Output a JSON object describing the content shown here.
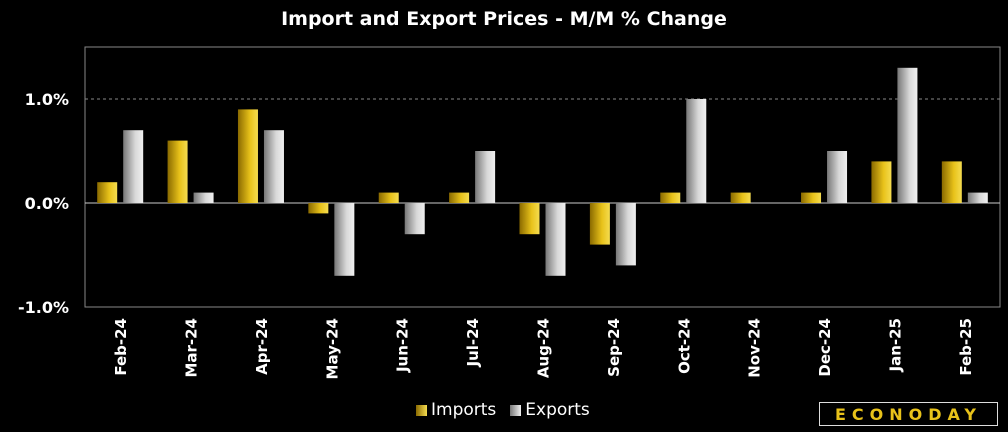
{
  "chart_data": {
    "type": "bar",
    "title": "Import and Export Prices - M/M % Change",
    "categories": [
      "Feb-24",
      "Mar-24",
      "Apr-24",
      "May-24",
      "Jun-24",
      "Jul-24",
      "Aug-24",
      "Sep-24",
      "Oct-24",
      "Nov-24",
      "Dec-24",
      "Jan-25",
      "Feb-25"
    ],
    "series": [
      {
        "name": "Imports",
        "values": [
          0.2,
          0.6,
          0.9,
          -0.1,
          0.1,
          0.1,
          -0.3,
          -0.4,
          0.1,
          0.1,
          0.1,
          0.4,
          0.4
        ],
        "color": "#e8c21a"
      },
      {
        "name": "Exports",
        "values": [
          0.7,
          0.1,
          0.7,
          -0.7,
          -0.3,
          0.5,
          -0.7,
          -0.6,
          1.0,
          0.0,
          0.5,
          1.3,
          0.1
        ],
        "color": "#d0d0d0"
      }
    ],
    "yticks": [
      {
        "value": 1.0,
        "label": "1.0%"
      },
      {
        "value": 0.0,
        "label": "0.0%"
      },
      {
        "value": -1.0,
        "label": "-1.0%"
      }
    ],
    "ylim": [
      -1.0,
      1.5
    ],
    "xlabel": "",
    "ylabel": "",
    "grid": "dashed at 1.0%",
    "legend": "bottom"
  },
  "brand": "ECONODAY"
}
